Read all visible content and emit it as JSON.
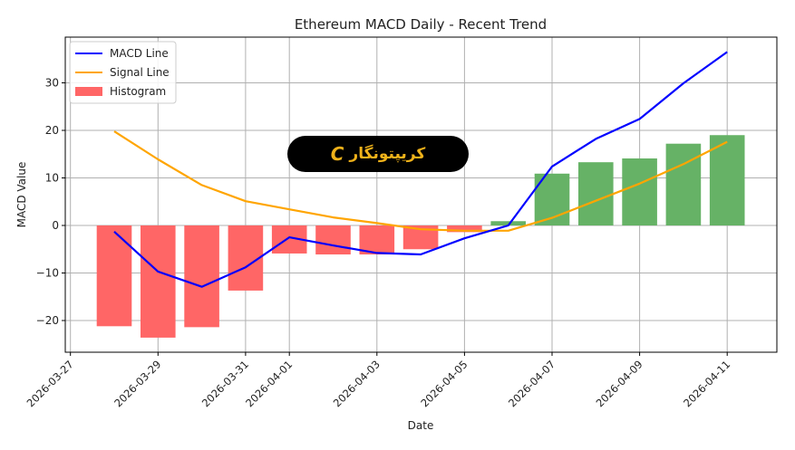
{
  "chart_data": {
    "type": "bar+line",
    "title": "Ethereum MACD Daily - Recent Trend",
    "xlabel": "Date",
    "ylabel": "MACD Value",
    "ylim": [
      -26.5,
      39.5
    ],
    "xlim": [
      "2026-03-27",
      "2026-04-11"
    ],
    "grid": true,
    "legend_position": "upper left",
    "x": [
      "2026-03-28",
      "2026-03-29",
      "2026-03-30",
      "2026-03-31",
      "2026-04-01",
      "2026-04-02",
      "2026-04-03",
      "2026-04-04",
      "2026-04-05",
      "2026-04-06",
      "2026-04-07",
      "2026-04-08",
      "2026-04-09",
      "2026-04-10",
      "2026-04-11"
    ],
    "x_ticks": [
      "2026-03-27",
      "2026-03-29",
      "2026-03-31",
      "2026-04-01",
      "2026-04-03",
      "2026-04-05",
      "2026-04-07",
      "2026-04-09",
      "2026-04-11"
    ],
    "y_ticks": [
      -20,
      -10,
      0,
      10,
      20,
      30
    ],
    "series": [
      {
        "name": "MACD Line",
        "type": "line",
        "color": "#0000ff",
        "values": [
          -1.3,
          -9.7,
          -12.9,
          -8.8,
          -2.5,
          -4.2,
          -5.8,
          -6.1,
          -2.7,
          0.0,
          12.4,
          18.2,
          22.4,
          29.9,
          36.5
        ]
      },
      {
        "name": "Signal Line",
        "type": "line",
        "color": "#ffa500",
        "values": [
          19.8,
          13.9,
          8.5,
          5.1,
          3.4,
          1.7,
          0.5,
          -0.8,
          -1.1,
          -1.1,
          1.6,
          5.2,
          8.8,
          12.9,
          17.6
        ]
      },
      {
        "name": "Histogram",
        "type": "bar",
        "color_negative": "#ff6666",
        "color_positive": "#66b266",
        "values": [
          -21.2,
          -23.6,
          -21.4,
          -13.7,
          -5.9,
          -6.1,
          -6.1,
          -5.0,
          -1.4,
          0.9,
          10.9,
          13.3,
          14.1,
          17.2,
          19.0
        ]
      }
    ],
    "x_tick_dates_numeric": {
      "2026-03-27": -1,
      "2026-03-29": 1,
      "2026-03-31": 3,
      "2026-04-01": 4,
      "2026-04-03": 6,
      "2026-04-05": 8,
      "2026-04-07": 10,
      "2026-04-09": 12,
      "2026-04-11": 14
    }
  },
  "watermark": {
    "text": "کریپتونگار",
    "logo_glyph": "C"
  }
}
